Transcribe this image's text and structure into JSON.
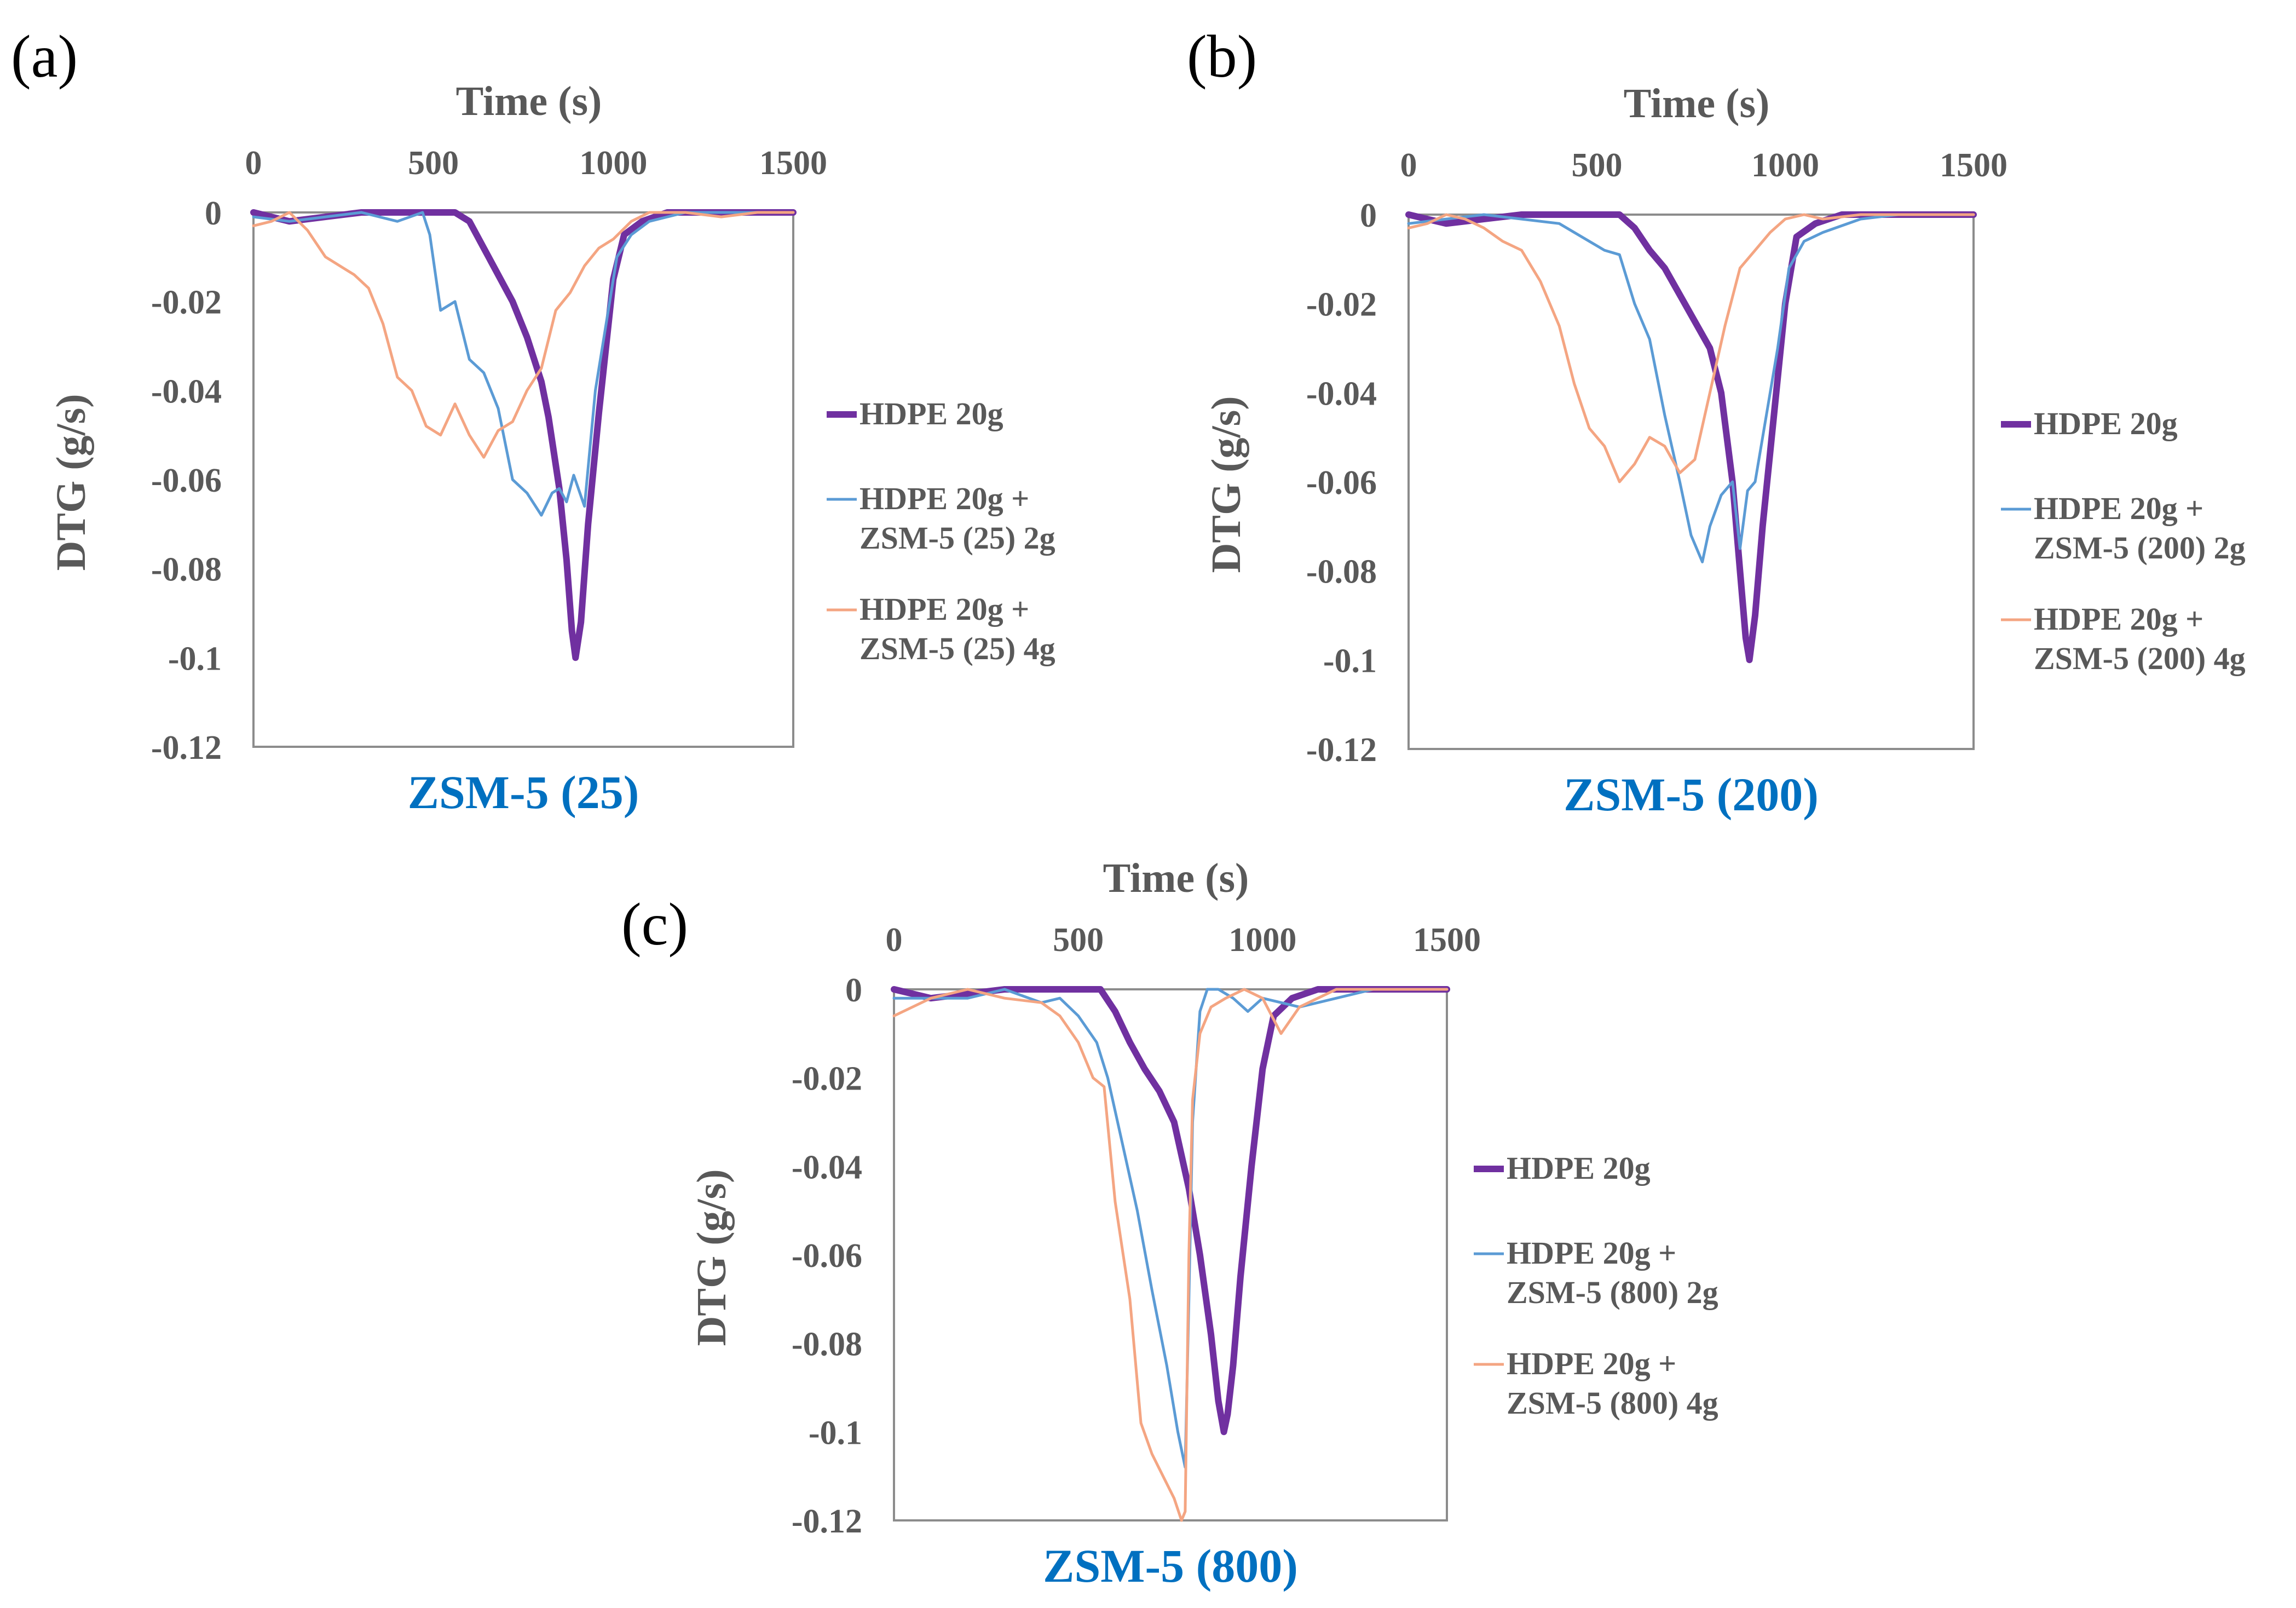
{
  "chart_data": [
    {
      "type": "line",
      "panel_label": "(a)",
      "title": "ZSM-5 (25)",
      "xlabel": "Time (s)",
      "ylabel": "DTG (g/s)",
      "xlim": [
        0,
        1500
      ],
      "ylim": [
        -0.12,
        0
      ],
      "x_ticks": [
        "0",
        "500",
        "1000",
        "1500"
      ],
      "y_ticks": [
        "0",
        "-0.02",
        "-0.04",
        "-0.06",
        "-0.08",
        "-0.1",
        "-0.12"
      ],
      "x_axis_position": "top",
      "legend_position": "right",
      "series": [
        {
          "name": "HDPE 20g",
          "color": "#7030A0",
          "width": "thick",
          "x": [
            0,
            100,
            200,
            300,
            400,
            500,
            560,
            600,
            640,
            680,
            720,
            760,
            800,
            820,
            850,
            870,
            885,
            895,
            910,
            930,
            960,
            1000,
            1030,
            1080,
            1150,
            1250,
            1400,
            1500
          ],
          "y": [
            0,
            -0.002,
            -0.001,
            0,
            0,
            0,
            0,
            -0.002,
            -0.008,
            -0.014,
            -0.02,
            -0.028,
            -0.038,
            -0.046,
            -0.062,
            -0.078,
            -0.094,
            -0.1,
            -0.092,
            -0.07,
            -0.045,
            -0.015,
            -0.005,
            -0.002,
            0,
            0,
            0,
            0
          ]
        },
        {
          "name": "HDPE 20g + ZSM-5 (25) 2g",
          "color": "#5B9BD5",
          "width": "thin",
          "x": [
            0,
            100,
            200,
            300,
            400,
            470,
            490,
            520,
            560,
            600,
            640,
            680,
            720,
            760,
            800,
            830,
            850,
            870,
            890,
            920,
            950,
            980,
            1010,
            1050,
            1100,
            1200,
            1300,
            1400,
            1500
          ],
          "y": [
            -0.001,
            -0.002,
            -0.001,
            0,
            -0.002,
            0,
            -0.005,
            -0.022,
            -0.02,
            -0.033,
            -0.036,
            -0.044,
            -0.06,
            -0.063,
            -0.068,
            -0.063,
            -0.062,
            -0.065,
            -0.059,
            -0.066,
            -0.04,
            -0.025,
            -0.01,
            -0.005,
            -0.002,
            0,
            0,
            0,
            0
          ]
        },
        {
          "name": "HDPE 20g + ZSM-5 (25) 4g",
          "color": "#F4A582",
          "width": "thin",
          "x": [
            0,
            50,
            100,
            150,
            200,
            240,
            280,
            320,
            360,
            400,
            440,
            480,
            520,
            560,
            600,
            640,
            680,
            720,
            760,
            800,
            840,
            880,
            920,
            960,
            1000,
            1050,
            1100,
            1200,
            1300,
            1400,
            1500
          ],
          "y": [
            -0.003,
            -0.002,
            0,
            -0.004,
            -0.01,
            -0.012,
            -0.014,
            -0.017,
            -0.025,
            -0.037,
            -0.04,
            -0.048,
            -0.05,
            -0.043,
            -0.05,
            -0.055,
            -0.049,
            -0.047,
            -0.04,
            -0.035,
            -0.022,
            -0.018,
            -0.012,
            -0.008,
            -0.006,
            -0.002,
            0,
            0,
            -0.001,
            0,
            0
          ]
        }
      ]
    },
    {
      "type": "line",
      "panel_label": "(b)",
      "title": "ZSM-5 (200)",
      "xlabel": "Time (s)",
      "ylabel": "DTG (g/s)",
      "xlim": [
        0,
        1500
      ],
      "ylim": [
        -0.12,
        0
      ],
      "x_ticks": [
        "0",
        "500",
        "1000",
        "1500"
      ],
      "y_ticks": [
        "0",
        "-0.02",
        "-0.04",
        "-0.06",
        "-0.08",
        "-0.1",
        "-0.12"
      ],
      "x_axis_position": "top",
      "legend_position": "right",
      "series": [
        {
          "name": "HDPE 20g",
          "color": "#7030A0",
          "width": "thick",
          "x": [
            0,
            100,
            200,
            300,
            400,
            500,
            560,
            600,
            640,
            680,
            720,
            760,
            800,
            830,
            860,
            880,
            895,
            905,
            920,
            940,
            970,
            1000,
            1030,
            1080,
            1150,
            1250,
            1400,
            1500
          ],
          "y": [
            0,
            -0.002,
            -0.001,
            0,
            0,
            0,
            0,
            -0.003,
            -0.008,
            -0.012,
            -0.018,
            -0.024,
            -0.03,
            -0.04,
            -0.06,
            -0.08,
            -0.095,
            -0.1,
            -0.09,
            -0.07,
            -0.045,
            -0.02,
            -0.005,
            -0.002,
            0,
            0,
            0,
            0
          ]
        },
        {
          "name": "HDPE 20g + ZSM-5 (200) 2g",
          "color": "#5B9BD5",
          "width": "thin",
          "x": [
            0,
            100,
            200,
            300,
            400,
            480,
            520,
            560,
            600,
            640,
            680,
            720,
            750,
            780,
            800,
            830,
            860,
            880,
            900,
            920,
            950,
            980,
            1010,
            1050,
            1100,
            1200,
            1300,
            1400,
            1500
          ],
          "y": [
            -0.002,
            -0.001,
            0,
            -0.001,
            -0.002,
            -0.006,
            -0.008,
            -0.009,
            -0.02,
            -0.028,
            -0.045,
            -0.06,
            -0.072,
            -0.078,
            -0.07,
            -0.063,
            -0.06,
            -0.075,
            -0.062,
            -0.06,
            -0.045,
            -0.03,
            -0.012,
            -0.006,
            -0.004,
            -0.001,
            0,
            0,
            0
          ]
        },
        {
          "name": "HDPE 20g + ZSM-5 (200) 4g",
          "color": "#F4A582",
          "width": "thin",
          "x": [
            0,
            50,
            100,
            150,
            200,
            250,
            300,
            350,
            400,
            440,
            480,
            520,
            560,
            600,
            640,
            680,
            720,
            760,
            800,
            840,
            880,
            920,
            960,
            1000,
            1050,
            1100,
            1200,
            1300,
            1400,
            1500
          ],
          "y": [
            -0.003,
            -0.002,
            0,
            -0.001,
            -0.003,
            -0.006,
            -0.008,
            -0.015,
            -0.025,
            -0.038,
            -0.048,
            -0.052,
            -0.06,
            -0.056,
            -0.05,
            -0.052,
            -0.058,
            -0.055,
            -0.04,
            -0.025,
            -0.012,
            -0.008,
            -0.004,
            -0.001,
            0,
            -0.001,
            0,
            0,
            0,
            0
          ]
        }
      ]
    },
    {
      "type": "line",
      "panel_label": "(c)",
      "title": "ZSM-5 (800)",
      "xlabel": "Time (s)",
      "ylabel": "DTG (g/s)",
      "xlim": [
        0,
        1500
      ],
      "ylim": [
        -0.12,
        0
      ],
      "x_ticks": [
        "0",
        "500",
        "1000",
        "1500"
      ],
      "y_ticks": [
        "0",
        "-0.02",
        "-0.04",
        "-0.06",
        "-0.08",
        "-0.1",
        "-0.12"
      ],
      "x_axis_position": "top",
      "legend_position": "right",
      "series": [
        {
          "name": "HDPE 20g",
          "color": "#7030A0",
          "width": "thick",
          "x": [
            0,
            100,
            200,
            300,
            400,
            500,
            560,
            600,
            640,
            680,
            720,
            760,
            800,
            830,
            860,
            880,
            895,
            905,
            920,
            940,
            970,
            1000,
            1030,
            1080,
            1150,
            1250,
            1400,
            1500
          ],
          "y": [
            0,
            -0.002,
            -0.001,
            0,
            0,
            0,
            0,
            -0.005,
            -0.012,
            -0.018,
            -0.023,
            -0.03,
            -0.045,
            -0.06,
            -0.078,
            -0.093,
            -0.1,
            -0.096,
            -0.085,
            -0.065,
            -0.04,
            -0.018,
            -0.006,
            -0.002,
            0,
            0,
            0,
            0
          ]
        },
        {
          "name": "HDPE 20g + ZSM-5 (800) 2g",
          "color": "#5B9BD5",
          "width": "thin",
          "x": [
            0,
            100,
            200,
            300,
            400,
            450,
            500,
            550,
            580,
            620,
            660,
            700,
            740,
            770,
            790,
            800,
            810,
            830,
            850,
            880,
            920,
            960,
            1000,
            1100,
            1200,
            1300,
            1400,
            1500
          ],
          "y": [
            -0.002,
            -0.002,
            -0.002,
            0,
            -0.003,
            -0.002,
            -0.006,
            -0.012,
            -0.02,
            -0.035,
            -0.05,
            -0.068,
            -0.085,
            -0.1,
            -0.108,
            -0.07,
            -0.03,
            -0.005,
            0,
            0,
            -0.002,
            -0.005,
            -0.002,
            -0.004,
            -0.002,
            0,
            0,
            0
          ]
        },
        {
          "name": "HDPE 20g + ZSM-5 (800) 4g",
          "color": "#F4A582",
          "width": "thin",
          "x": [
            0,
            100,
            200,
            300,
            400,
            450,
            500,
            540,
            570,
            600,
            640,
            670,
            700,
            730,
            760,
            780,
            790,
            800,
            810,
            830,
            860,
            900,
            950,
            1000,
            1050,
            1100,
            1200,
            1300,
            1400,
            1500
          ],
          "y": [
            -0.006,
            -0.002,
            0,
            -0.002,
            -0.003,
            -0.006,
            -0.012,
            -0.02,
            -0.022,
            -0.048,
            -0.07,
            -0.098,
            -0.105,
            -0.11,
            -0.115,
            -0.12,
            -0.118,
            -0.06,
            -0.025,
            -0.01,
            -0.004,
            -0.002,
            0,
            -0.002,
            -0.01,
            -0.004,
            0,
            0,
            0,
            0
          ]
        }
      ]
    }
  ]
}
